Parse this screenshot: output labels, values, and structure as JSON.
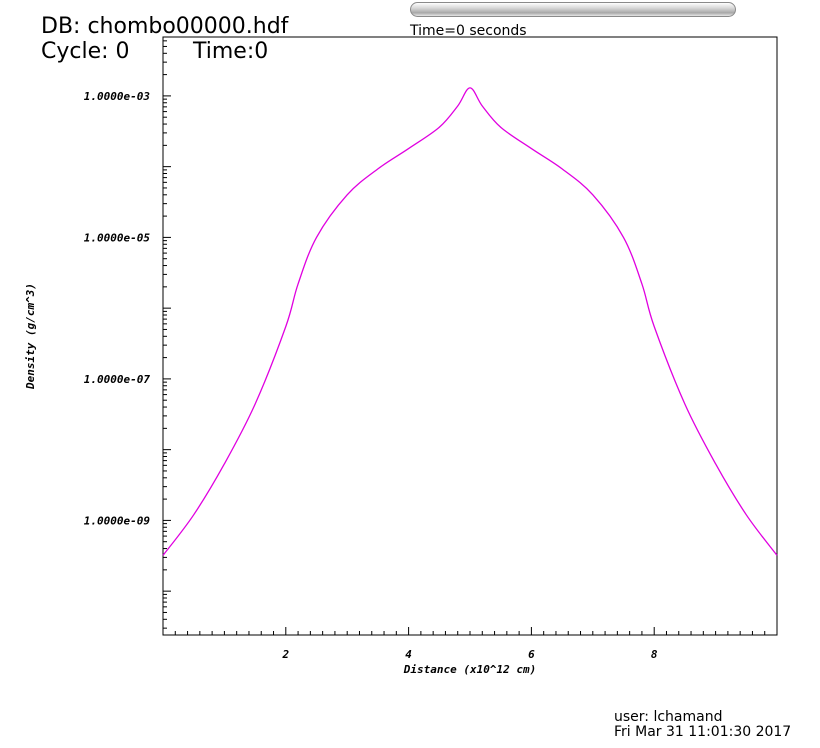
{
  "header": {
    "db": "DB: chombo00000.hdf",
    "cycle": "Cycle: 0",
    "time": "Time:0"
  },
  "time_slider": {
    "caption": "Time=0 seconds",
    "position": 0
  },
  "footer": {
    "user": "user: lchamand",
    "date": "Fri Mar 31 11:01:30 2017"
  },
  "chart_data": {
    "type": "line",
    "title": "",
    "xlabel": "Distance (x10^12 cm)",
    "ylabel": "Density (g/cm^3)",
    "xlim": [
      0,
      10
    ],
    "ylim": [
      2.4e-11,
      0.0068
    ],
    "yscale": "log",
    "x_ticks": [
      2,
      4,
      6,
      8
    ],
    "y_ticks": [
      {
        "value": 0.001,
        "label": "1.0000e-03"
      },
      {
        "value": 1e-05,
        "label": "1.0000e-05"
      },
      {
        "value": 1e-07,
        "label": "1.0000e-07"
      },
      {
        "value": 1e-09,
        "label": "1.0000e-09"
      }
    ],
    "grid": false,
    "line_color": "#e000e0",
    "series": [
      {
        "x": [
          0.0,
          0.5,
          1.0,
          1.5,
          2.0,
          2.2,
          2.5,
          3.0,
          3.5,
          4.0,
          4.5,
          4.8,
          5.0,
          5.2,
          5.5,
          6.0,
          6.5,
          7.0,
          7.5,
          7.8,
          8.0,
          8.5,
          9.0,
          9.5,
          10.0
        ],
        "y": [
          3.2e-10,
          1.2e-09,
          6.3e-09,
          4.4e-08,
          5.5e-07,
          2.2e-06,
          1e-05,
          4e-05,
          9.3e-05,
          0.00018,
          0.00036,
          0.00072,
          0.0013,
          0.00072,
          0.00036,
          0.00018,
          9.3e-05,
          4e-05,
          1e-05,
          2.2e-06,
          5.5e-07,
          4.4e-08,
          6.3e-09,
          1.2e-09,
          3.2e-10
        ]
      }
    ]
  }
}
